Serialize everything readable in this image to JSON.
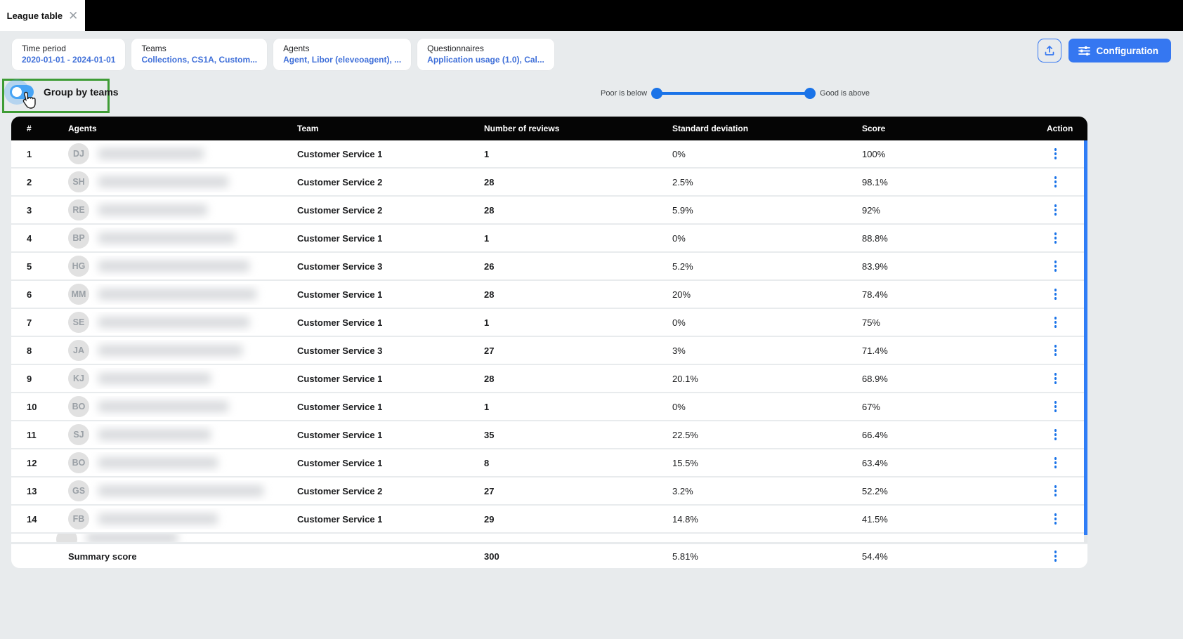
{
  "tab": {
    "title": "League table",
    "close_glyph": "✕"
  },
  "filters": [
    {
      "label": "Time period",
      "value": "2020-01-01 - 2024-01-01"
    },
    {
      "label": "Teams",
      "value": "Collections, CS1A, Custom..."
    },
    {
      "label": "Agents",
      "value": "Agent, Libor (eleveoagent), ..."
    },
    {
      "label": "Questionnaires",
      "value": "Application usage (1.0), Cal..."
    }
  ],
  "toolbar": {
    "configuration_label": "Configuration"
  },
  "controls": {
    "group_by_teams_label": "Group by teams",
    "slider": {
      "left_label": "Poor is below",
      "right_label": "Good is above"
    }
  },
  "table": {
    "columns": [
      "#",
      "Agents",
      "Team",
      "Number of reviews",
      "Standard deviation",
      "Score",
      "Action"
    ],
    "rows": [
      {
        "rank": "1",
        "initials": "DJ",
        "team": "Customer Service 1",
        "reviews": "1",
        "std_dev": "0%",
        "score": "100%",
        "blur_width": 150
      },
      {
        "rank": "2",
        "initials": "SH",
        "team": "Customer Service 2",
        "reviews": "28",
        "std_dev": "2.5%",
        "score": "98.1%",
        "blur_width": 185
      },
      {
        "rank": "3",
        "initials": "RE",
        "team": "Customer Service 2",
        "reviews": "28",
        "std_dev": "5.9%",
        "score": "92%",
        "blur_width": 155
      },
      {
        "rank": "4",
        "initials": "BP",
        "team": "Customer Service 1",
        "reviews": "1",
        "std_dev": "0%",
        "score": "88.8%",
        "blur_width": 195
      },
      {
        "rank": "5",
        "initials": "HG",
        "team": "Customer Service 3",
        "reviews": "26",
        "std_dev": "5.2%",
        "score": "83.9%",
        "blur_width": 215
      },
      {
        "rank": "6",
        "initials": "MM",
        "team": "Customer Service 1",
        "reviews": "28",
        "std_dev": "20%",
        "score": "78.4%",
        "blur_width": 225
      },
      {
        "rank": "7",
        "initials": "SE",
        "team": "Customer Service 1",
        "reviews": "1",
        "std_dev": "0%",
        "score": "75%",
        "blur_width": 215
      },
      {
        "rank": "8",
        "initials": "JA",
        "team": "Customer Service 3",
        "reviews": "27",
        "std_dev": "3%",
        "score": "71.4%",
        "blur_width": 205
      },
      {
        "rank": "9",
        "initials": "KJ",
        "team": "Customer Service 1",
        "reviews": "28",
        "std_dev": "20.1%",
        "score": "68.9%",
        "blur_width": 160
      },
      {
        "rank": "10",
        "initials": "BO",
        "team": "Customer Service 1",
        "reviews": "1",
        "std_dev": "0%",
        "score": "67%",
        "blur_width": 185
      },
      {
        "rank": "11",
        "initials": "SJ",
        "team": "Customer Service 1",
        "reviews": "35",
        "std_dev": "22.5%",
        "score": "66.4%",
        "blur_width": 160
      },
      {
        "rank": "12",
        "initials": "BO",
        "team": "Customer Service 1",
        "reviews": "8",
        "std_dev": "15.5%",
        "score": "63.4%",
        "blur_width": 170
      },
      {
        "rank": "13",
        "initials": "GS",
        "team": "Customer Service 2",
        "reviews": "27",
        "std_dev": "3.2%",
        "score": "52.2%",
        "blur_width": 235
      },
      {
        "rank": "14",
        "initials": "FB",
        "team": "Customer Service 1",
        "reviews": "29",
        "std_dev": "14.8%",
        "score": "41.5%",
        "blur_width": 170
      }
    ],
    "summary": {
      "label": "Summary score",
      "reviews": "300",
      "std_dev": "5.81%",
      "score": "54.4%"
    }
  },
  "colors": {
    "accent_blue": "#3577f1",
    "link_blue": "#4070d9",
    "slider_blue": "#1a73e8",
    "scrollbar_blue": "#2f7df6",
    "annotation_green": "#3e9c35",
    "header_black": "#050505",
    "page_bg": "#e8ebed"
  }
}
